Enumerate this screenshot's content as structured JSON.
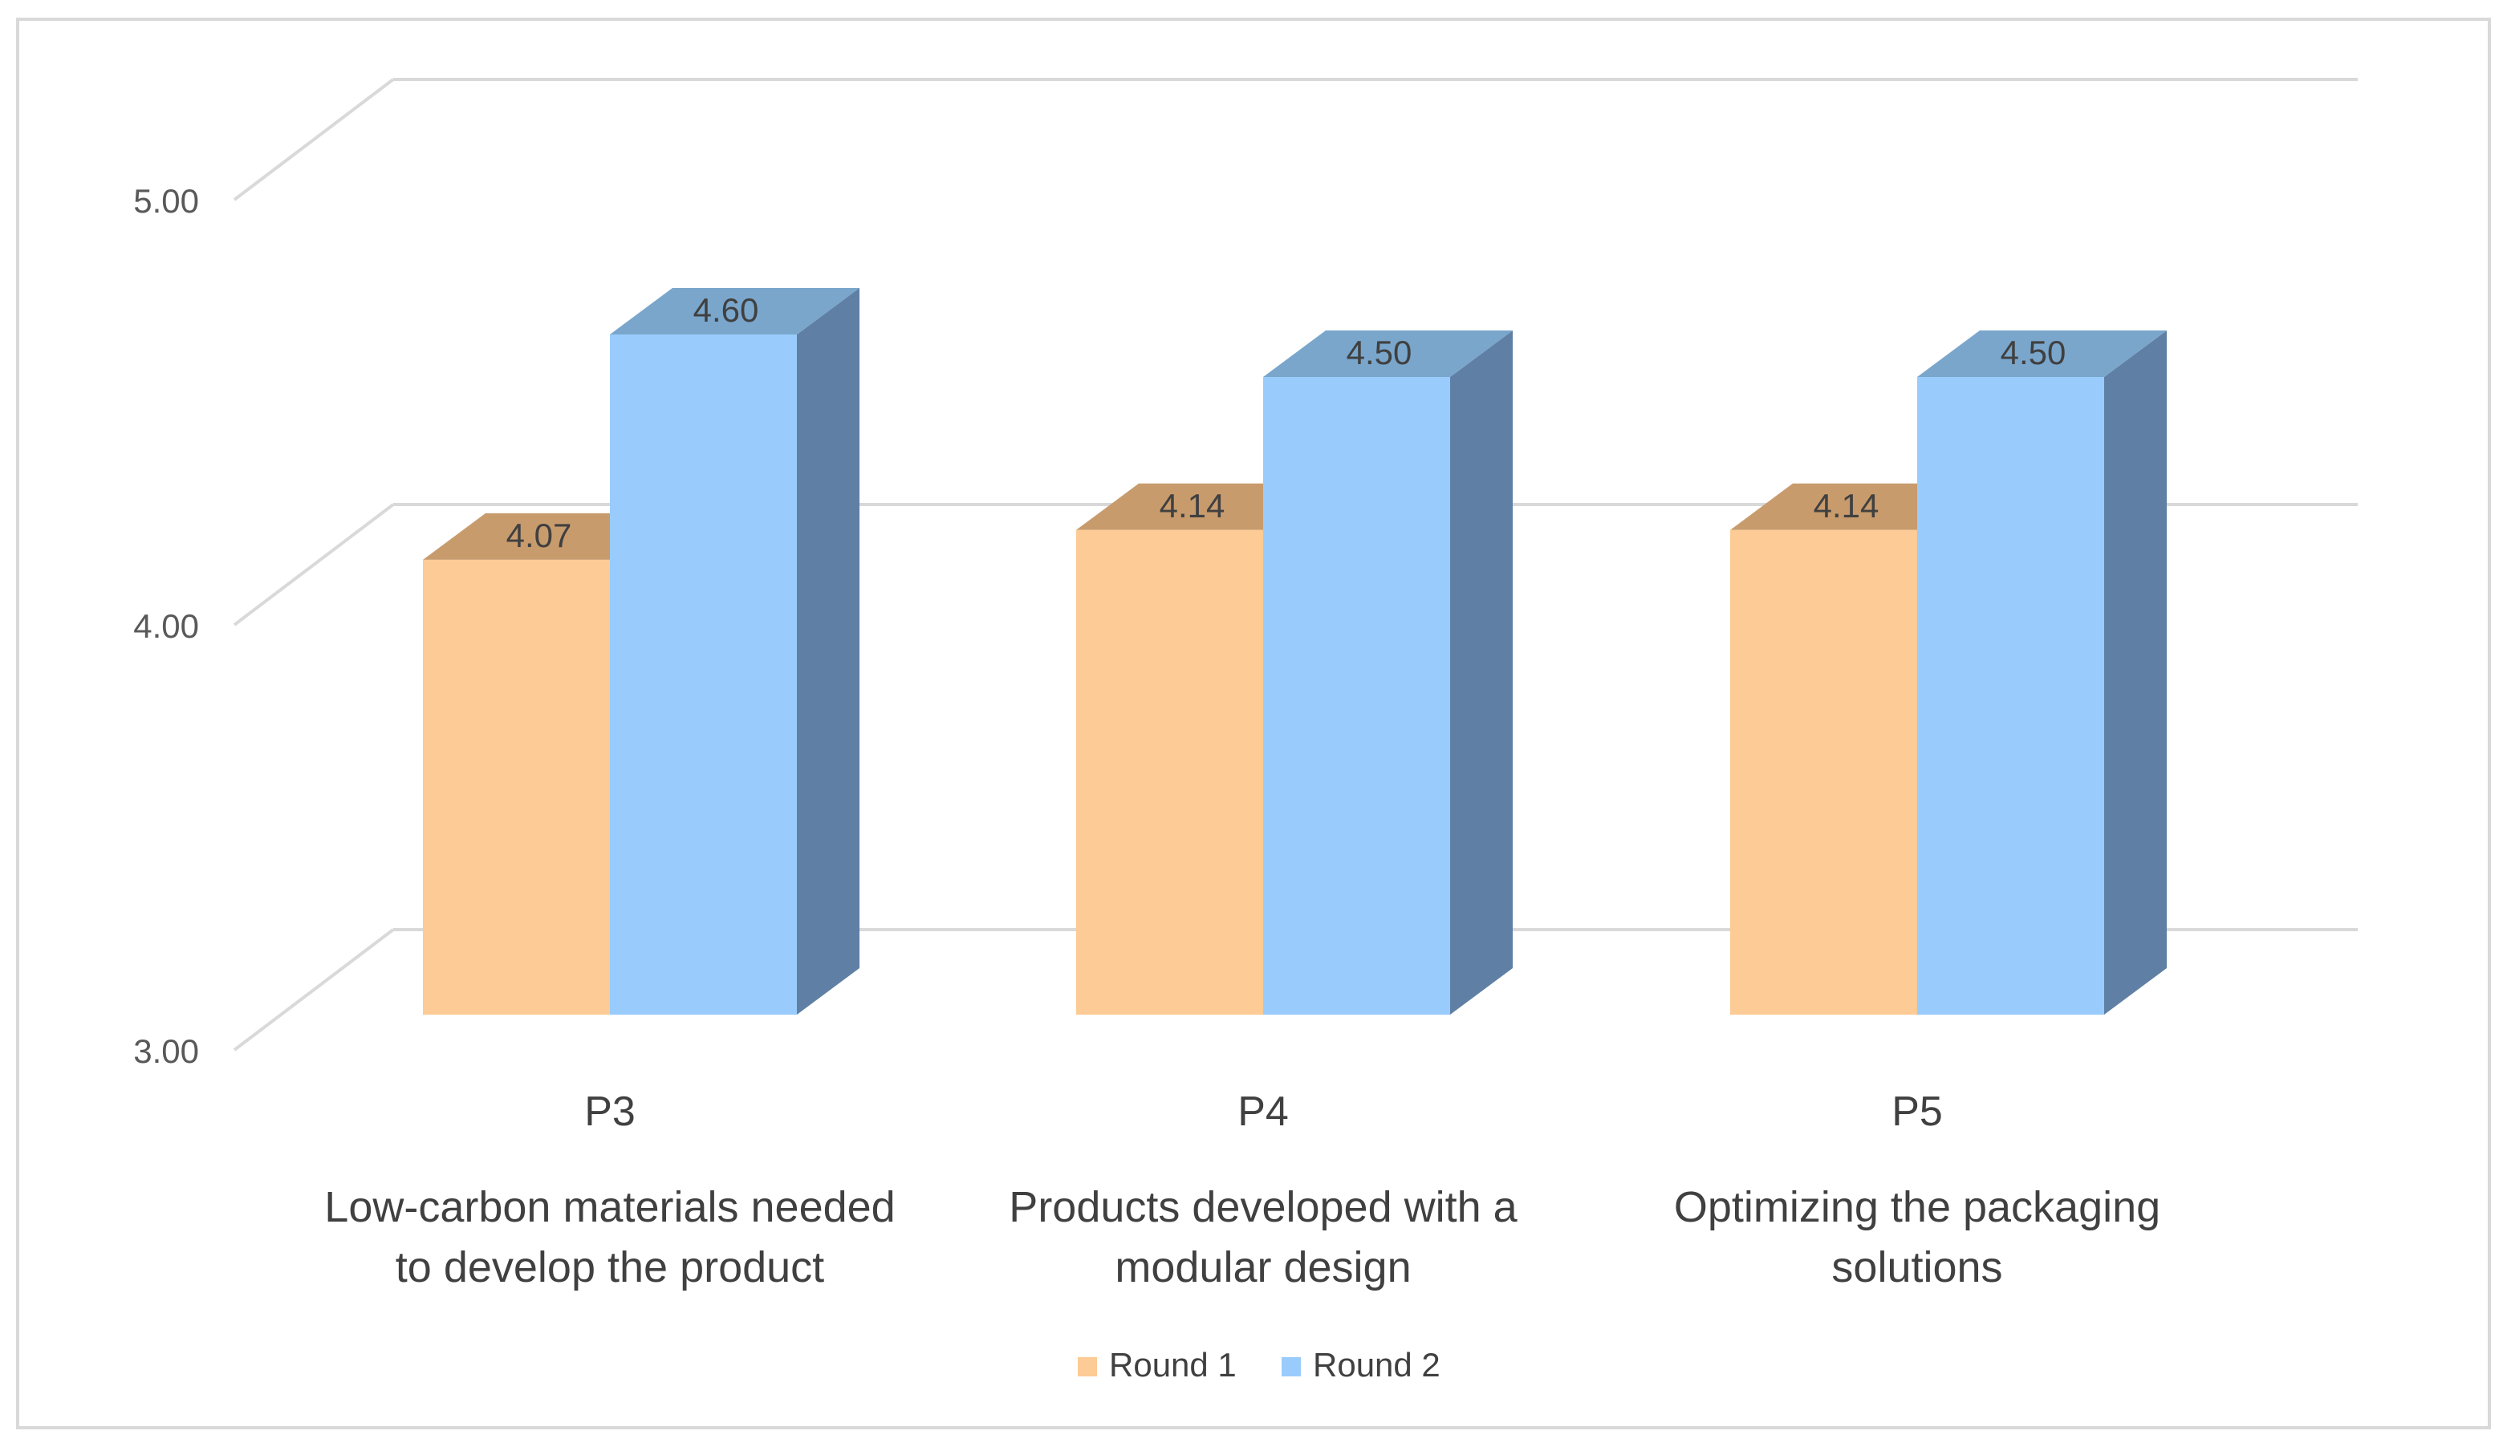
{
  "chart_data": {
    "type": "bar",
    "style": "3d-clustered-column",
    "title": "",
    "xlabel": "",
    "ylabel": "",
    "ylim": [
      3.0,
      5.0
    ],
    "yticks": [
      "3.00",
      "4.00",
      "5.00"
    ],
    "categories": [
      {
        "code": "P3",
        "label_lines": [
          "Low-carbon materials needed",
          "to develop the product"
        ]
      },
      {
        "code": "P4",
        "label_lines": [
          "Products developed with a",
          "modular design"
        ]
      },
      {
        "code": "P5",
        "label_lines": [
          "Optimizing the packaging",
          "solutions"
        ]
      }
    ],
    "series": [
      {
        "name": "Round 1",
        "values": [
          4.07,
          4.14,
          4.14
        ],
        "labels": [
          "4.07",
          "4.14",
          "4.14"
        ]
      },
      {
        "name": "Round 2",
        "values": [
          4.6,
          4.5,
          4.5
        ],
        "labels": [
          "4.60",
          "4.50",
          "4.50"
        ]
      }
    ],
    "legend": "bottom-center",
    "grid": true
  },
  "colors": {
    "round1_front": "#fdcb95",
    "round1_top": "#c89b6d",
    "round2_front": "#99ccfc",
    "round2_top": "#7aa6cc",
    "round2_side": "#5f80a4",
    "grid": "#d9d9d9"
  }
}
